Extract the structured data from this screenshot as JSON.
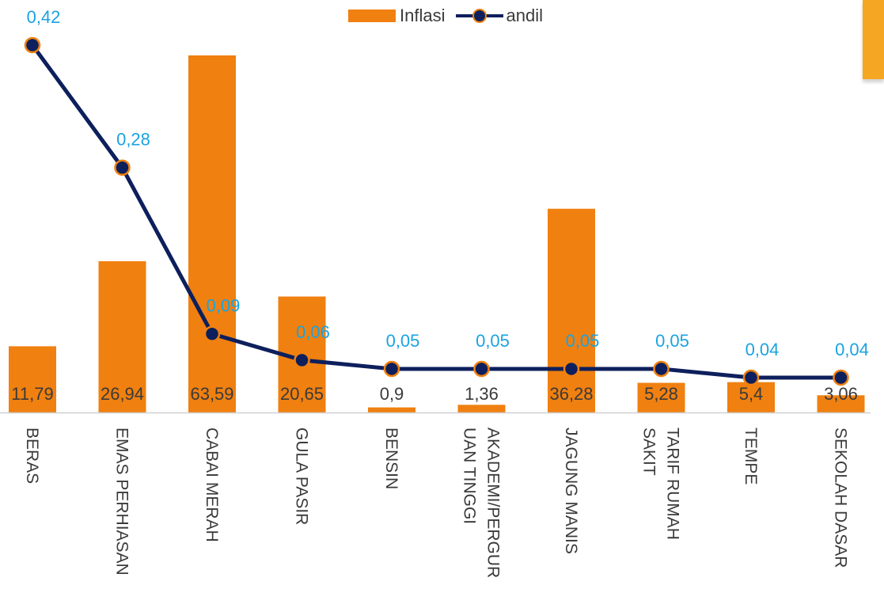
{
  "legend": {
    "bar_label": "Inflasi",
    "line_label": "andil"
  },
  "colors": {
    "bar": "#f08010",
    "line": "#0d1f5c",
    "marker_border": "#f08010",
    "line_label": "#1aa3e0",
    "bar_label": "#3a3a3a",
    "axis": "#d0d0d0",
    "category": "#3a3a3a",
    "corner_tab": "#f5a623"
  },
  "chart_data": {
    "type": "bar",
    "categories": [
      "BERAS",
      "EMAS PERHIASAN",
      "CABAI MERAH",
      "GULA PASIR",
      "BENSIN",
      "AKADEMI/PERGUR UAN TINGGI",
      "JAGUNG MANIS",
      "TARIF RUMAH SAKIT",
      "TEMPE",
      "SEKOLAH DASAR"
    ],
    "category_lines": [
      [
        "BERAS"
      ],
      [
        "EMAS PERHIASAN"
      ],
      [
        "CABAI MERAH"
      ],
      [
        "GULA PASIR"
      ],
      [
        "BENSIN"
      ],
      [
        "AKADEMI/PERGUR",
        "UAN TINGGI"
      ],
      [
        "JAGUNG MANIS"
      ],
      [
        "TARIF RUMAH",
        "SAKIT"
      ],
      [
        "TEMPE"
      ],
      [
        "SEKOLAH DASAR"
      ]
    ],
    "series": [
      {
        "name": "Inflasi",
        "type": "bar",
        "values": [
          11.79,
          26.94,
          63.59,
          20.65,
          0.9,
          1.36,
          36.28,
          5.28,
          5.4,
          3.06
        ],
        "labels": [
          "11,79",
          "26,94",
          "63,59",
          "20,65",
          "0,9",
          "1,36",
          "36,28",
          "5,28",
          "5,4",
          "3,06"
        ]
      },
      {
        "name": "andil",
        "type": "line",
        "values": [
          0.42,
          0.28,
          0.09,
          0.06,
          0.05,
          0.05,
          0.05,
          0.05,
          0.04,
          0.04
        ],
        "labels": [
          "0,42",
          "0,28",
          "0,09",
          "0,06",
          "0,05",
          "0,05",
          "0,05",
          "0,05",
          "0,04",
          "0,04"
        ]
      }
    ],
    "axes": {
      "bar_ylim": [
        0,
        70
      ],
      "line_ylim": [
        0,
        0.42
      ]
    },
    "grid": false,
    "legend_position": "top-center"
  }
}
